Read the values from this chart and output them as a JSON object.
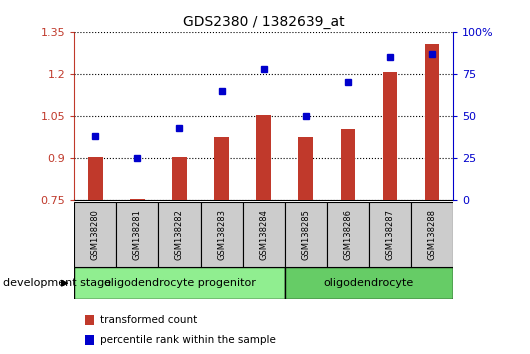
{
  "title": "GDS2380 / 1382639_at",
  "samples": [
    "GSM138280",
    "GSM138281",
    "GSM138282",
    "GSM138283",
    "GSM138284",
    "GSM138285",
    "GSM138286",
    "GSM138287",
    "GSM138288"
  ],
  "transformed_count": [
    0.905,
    0.755,
    0.905,
    0.975,
    1.055,
    0.975,
    1.005,
    1.205,
    1.305
  ],
  "percentile_rank": [
    38,
    25,
    43,
    65,
    78,
    50,
    70,
    85,
    87
  ],
  "ylim_left": [
    0.75,
    1.35
  ],
  "ylim_right": [
    0,
    100
  ],
  "yticks_left": [
    0.75,
    0.9,
    1.05,
    1.2,
    1.35
  ],
  "ytick_labels_left": [
    "0.75",
    "0.9",
    "1.05",
    "1.2",
    "1.35"
  ],
  "yticks_right": [
    0,
    25,
    50,
    75,
    100
  ],
  "ytick_labels_right": [
    "0",
    "25",
    "50",
    "75",
    "100%"
  ],
  "bar_color": "#c0392b",
  "dot_color": "#0000cc",
  "bar_bottom": 0.75,
  "groups": [
    {
      "label": "oligodendrocyte progenitor",
      "start": 0,
      "end": 5,
      "color": "#90ee90"
    },
    {
      "label": "oligodendrocyte",
      "start": 5,
      "end": 9,
      "color": "#66cc66"
    }
  ],
  "legend_items": [
    {
      "label": "transformed count",
      "color": "#c0392b"
    },
    {
      "label": "percentile rank within the sample",
      "color": "#0000cc"
    }
  ],
  "dev_stage_label": "development stage"
}
